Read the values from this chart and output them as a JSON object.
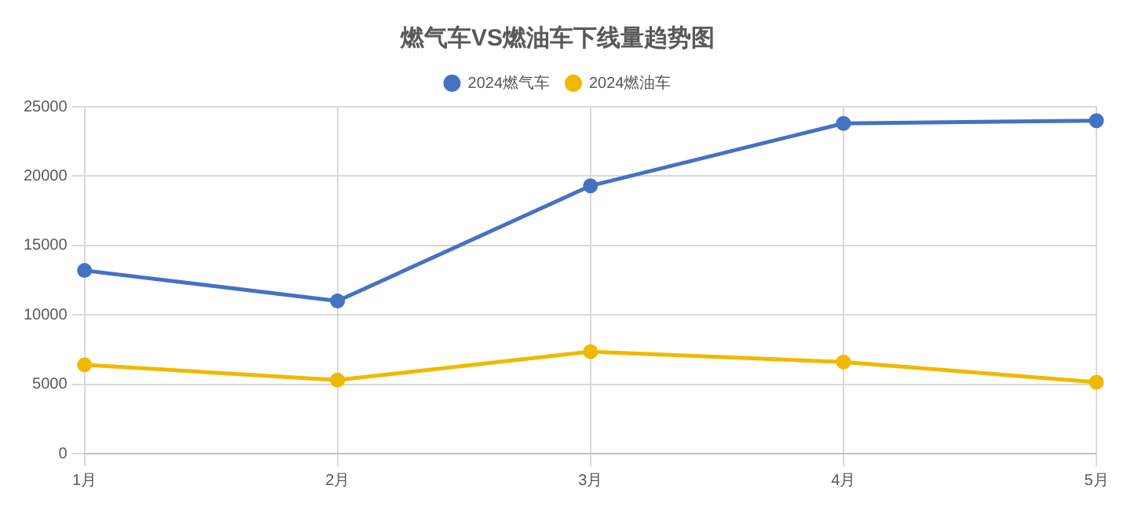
{
  "chart_data": {
    "type": "line",
    "title": "燃气车VS燃油车下线量趋势图",
    "categories": [
      "1月",
      "2月",
      "3月",
      "4月",
      "5月"
    ],
    "series": [
      {
        "name": "2024燃气车",
        "color": "#4472c4",
        "values": [
          13200,
          11000,
          19300,
          23800,
          24000
        ]
      },
      {
        "name": "2024燃油车",
        "color": "#f2b800",
        "values": [
          6400,
          5300,
          7350,
          6600,
          5150
        ]
      }
    ],
    "ylim": [
      0,
      25000
    ],
    "yticks": [
      0,
      5000,
      10000,
      15000,
      20000,
      25000
    ],
    "grid": true,
    "legend": "top",
    "marker": "circle",
    "line_style": "solid"
  }
}
